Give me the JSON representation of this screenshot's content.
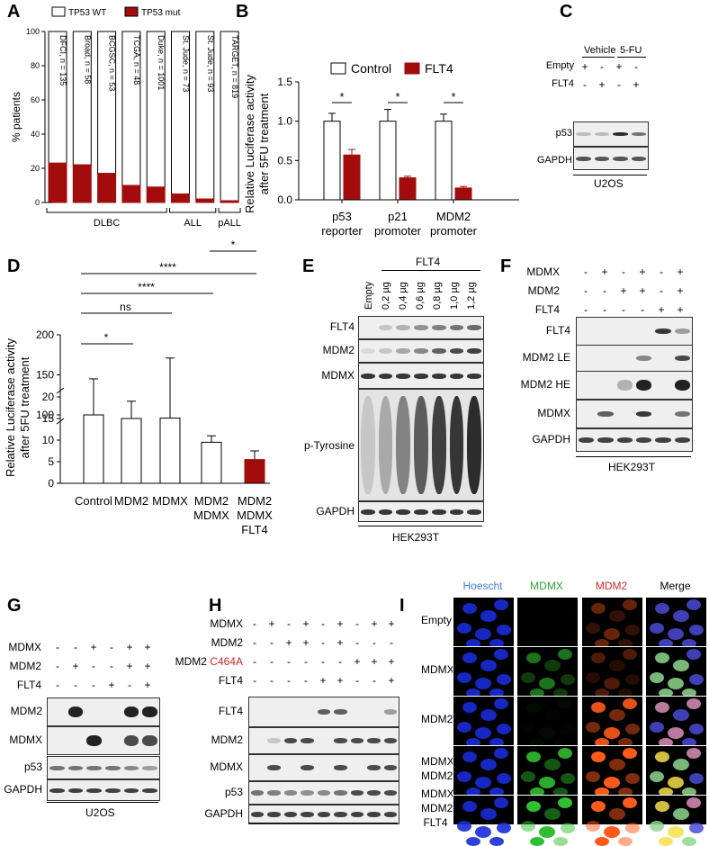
{
  "panels": {
    "A": "A",
    "B": "B",
    "C": "C",
    "D": "D",
    "E": "E",
    "F": "F",
    "G": "G",
    "H": "H",
    "I": "I"
  },
  "chart_data": [
    {
      "panel": "A",
      "type": "bar",
      "stacked": true,
      "legend": [
        "TP53 WT",
        "TP53 mut"
      ],
      "ylabel": "% patients",
      "ylim": [
        0,
        100
      ],
      "yticks": [
        0,
        20,
        40,
        60,
        80,
        100
      ],
      "categories": [
        "DFCI, n = 135",
        "Broad, n = 58",
        "BCGSC, n = 53",
        "TCGA, n = 48",
        "Duke, n = 1001",
        "St. Jude, n = 73",
        "St. Jude, n = 93",
        "TARGET, n = 819"
      ],
      "series": [
        {
          "name": "TP53 mut",
          "values": [
            23,
            22,
            17,
            10,
            9,
            5,
            2,
            1
          ]
        },
        {
          "name": "TP53 WT",
          "values": [
            77,
            78,
            83,
            90,
            91,
            95,
            98,
            99
          ]
        }
      ],
      "groups": [
        {
          "label": "DLBC",
          "from": 0,
          "to": 4
        },
        {
          "label": "ALL",
          "from": 5,
          "to": 6
        },
        {
          "label": "pALL",
          "from": 7,
          "to": 7
        }
      ],
      "colors": {
        "wt": "#ffffff",
        "mut": "#a30c0c"
      }
    },
    {
      "panel": "B",
      "type": "bar",
      "legend": [
        "Control",
        "FLT4"
      ],
      "ylabel": "Relative Luciferase activity after 5FU treatment",
      "ylim": [
        0,
        1.5
      ],
      "yticks": [
        "0.0",
        "0.5",
        "1.0",
        "1.5"
      ],
      "categories": [
        "p53 reporter",
        "p21 promoter",
        "MDM2 promoter"
      ],
      "category_lines": [
        [
          "p53",
          "reporter"
        ],
        [
          "p21",
          "promoter"
        ],
        [
          "MDM2",
          "promoter"
        ]
      ],
      "series": [
        {
          "name": "Control",
          "values": [
            1.0,
            1.0,
            1.0
          ],
          "errors": [
            0.1,
            0.15,
            0.09
          ]
        },
        {
          "name": "FLT4",
          "values": [
            0.57,
            0.28,
            0.15
          ],
          "errors": [
            0.07,
            0.02,
            0.02
          ]
        }
      ],
      "significance": [
        "*",
        "*",
        "*"
      ]
    },
    {
      "panel": "D",
      "type": "bar",
      "ylabel": "Relative Luciferase activity after 5FU treatment",
      "broken_axis": true,
      "yticks_upper": [
        100,
        150,
        200
      ],
      "yticks_lower": [
        0,
        5,
        10,
        15,
        20
      ],
      "categories": [
        "Control",
        "MDM2",
        "MDMX",
        "MDM2 MDMX",
        "MDM2 MDMX FLT4"
      ],
      "category_lines": [
        [
          "Control"
        ],
        [
          "MDM2"
        ],
        [
          "MDMX"
        ],
        [
          "MDM2",
          "MDMX"
        ],
        [
          "MDM2",
          "MDMX",
          "FLT4"
        ]
      ],
      "values": [
        100,
        15,
        96,
        9.5,
        5.5
      ],
      "errors": [
        45,
        4,
        75,
        1.5,
        2
      ],
      "comparisons": [
        {
          "from": 0,
          "to": 1,
          "label": "*"
        },
        {
          "from": 0,
          "to": 2,
          "label": "ns"
        },
        {
          "from": 0,
          "to": 3,
          "label": "****"
        },
        {
          "from": 0,
          "to": 4,
          "label": "****"
        },
        {
          "from": 3,
          "to": 4,
          "label": "*"
        }
      ]
    }
  ],
  "panel_c": {
    "groups": [
      "Vehicle",
      "5-FU"
    ],
    "rows": [
      {
        "label": "Empty",
        "signs": [
          "+",
          "-",
          "+",
          "-"
        ]
      },
      {
        "label": "FLT4",
        "signs": [
          "-",
          "+",
          "-",
          "+"
        ]
      }
    ],
    "blots": [
      "p53",
      "GAPDH"
    ],
    "cell_line": "U2OS"
  },
  "panel_e": {
    "header": "FLT4",
    "lanes": [
      "Empty",
      "0,2 µg",
      "0,4 µg",
      "0,6 µg",
      "0,8 µg",
      "1,0 µg",
      "1,2 µg"
    ],
    "blots": [
      "FLT4",
      "MDM2",
      "MDMX",
      "p-Tyrosine",
      "GAPDH"
    ],
    "cell_line": "HEK293T"
  },
  "panel_f": {
    "rows": [
      {
        "label": "MDMX",
        "signs": [
          "-",
          "+",
          "-",
          "+",
          "-",
          "+"
        ]
      },
      {
        "label": "MDM2",
        "signs": [
          "-",
          "-",
          "+",
          "+",
          "-",
          "+"
        ]
      },
      {
        "label": "FLT4",
        "signs": [
          "-",
          "-",
          "-",
          "-",
          "+",
          "+"
        ]
      }
    ],
    "blots": [
      "FLT4",
      "MDM2 LE",
      "MDM2 HE",
      "MDMX",
      "GAPDH"
    ],
    "cell_line": "HEK293T"
  },
  "panel_g": {
    "rows": [
      {
        "label": "MDMX",
        "signs": [
          "-",
          "-",
          "+",
          "-",
          "+",
          "+"
        ]
      },
      {
        "label": "MDM2",
        "signs": [
          "-",
          "+",
          "-",
          "-",
          "+",
          "+"
        ]
      },
      {
        "label": "FLT4",
        "signs": [
          "-",
          "-",
          "-",
          "+",
          "-",
          "+"
        ]
      }
    ],
    "blots": [
      "MDM2",
      "MDMX",
      "p53",
      "GAPDH"
    ],
    "cell_line": "U2OS"
  },
  "panel_h": {
    "rows": [
      {
        "label": "MDMX",
        "signs": [
          "-",
          "+",
          "-",
          "+",
          "-",
          "+",
          "-",
          "+",
          "+"
        ]
      },
      {
        "label": "MDM2",
        "signs": [
          "-",
          "-",
          "+",
          "+",
          "-",
          "+",
          "-",
          "-",
          "-"
        ]
      },
      {
        "label": "MDM2 C464A",
        "label_plain": "MDM2",
        "label_red": "C464A",
        "signs": [
          "-",
          "-",
          "-",
          "-",
          "-",
          "-",
          "+",
          "+",
          "+"
        ]
      },
      {
        "label": "FLT4",
        "signs": [
          "-",
          "-",
          "-",
          "-",
          "+",
          "+",
          "-",
          "-",
          "+"
        ]
      }
    ],
    "blots": [
      "FLT4",
      "MDM2",
      "MDMX",
      "p53",
      "GAPDH"
    ],
    "cell_line": "U2OS"
  },
  "panel_i": {
    "columns": [
      "Hoescht",
      "MDMX",
      "MDM2",
      "Merge"
    ],
    "column_colors": [
      "#3a7fd5",
      "#2ca02c",
      "#d62728",
      "#000000"
    ],
    "rows": [
      [
        "Empty"
      ],
      [
        "MDMX"
      ],
      [
        "MDM2"
      ],
      [
        "MDMX",
        "MDM2"
      ],
      [
        "MDMX",
        "MDM2",
        "FLT4"
      ]
    ]
  }
}
